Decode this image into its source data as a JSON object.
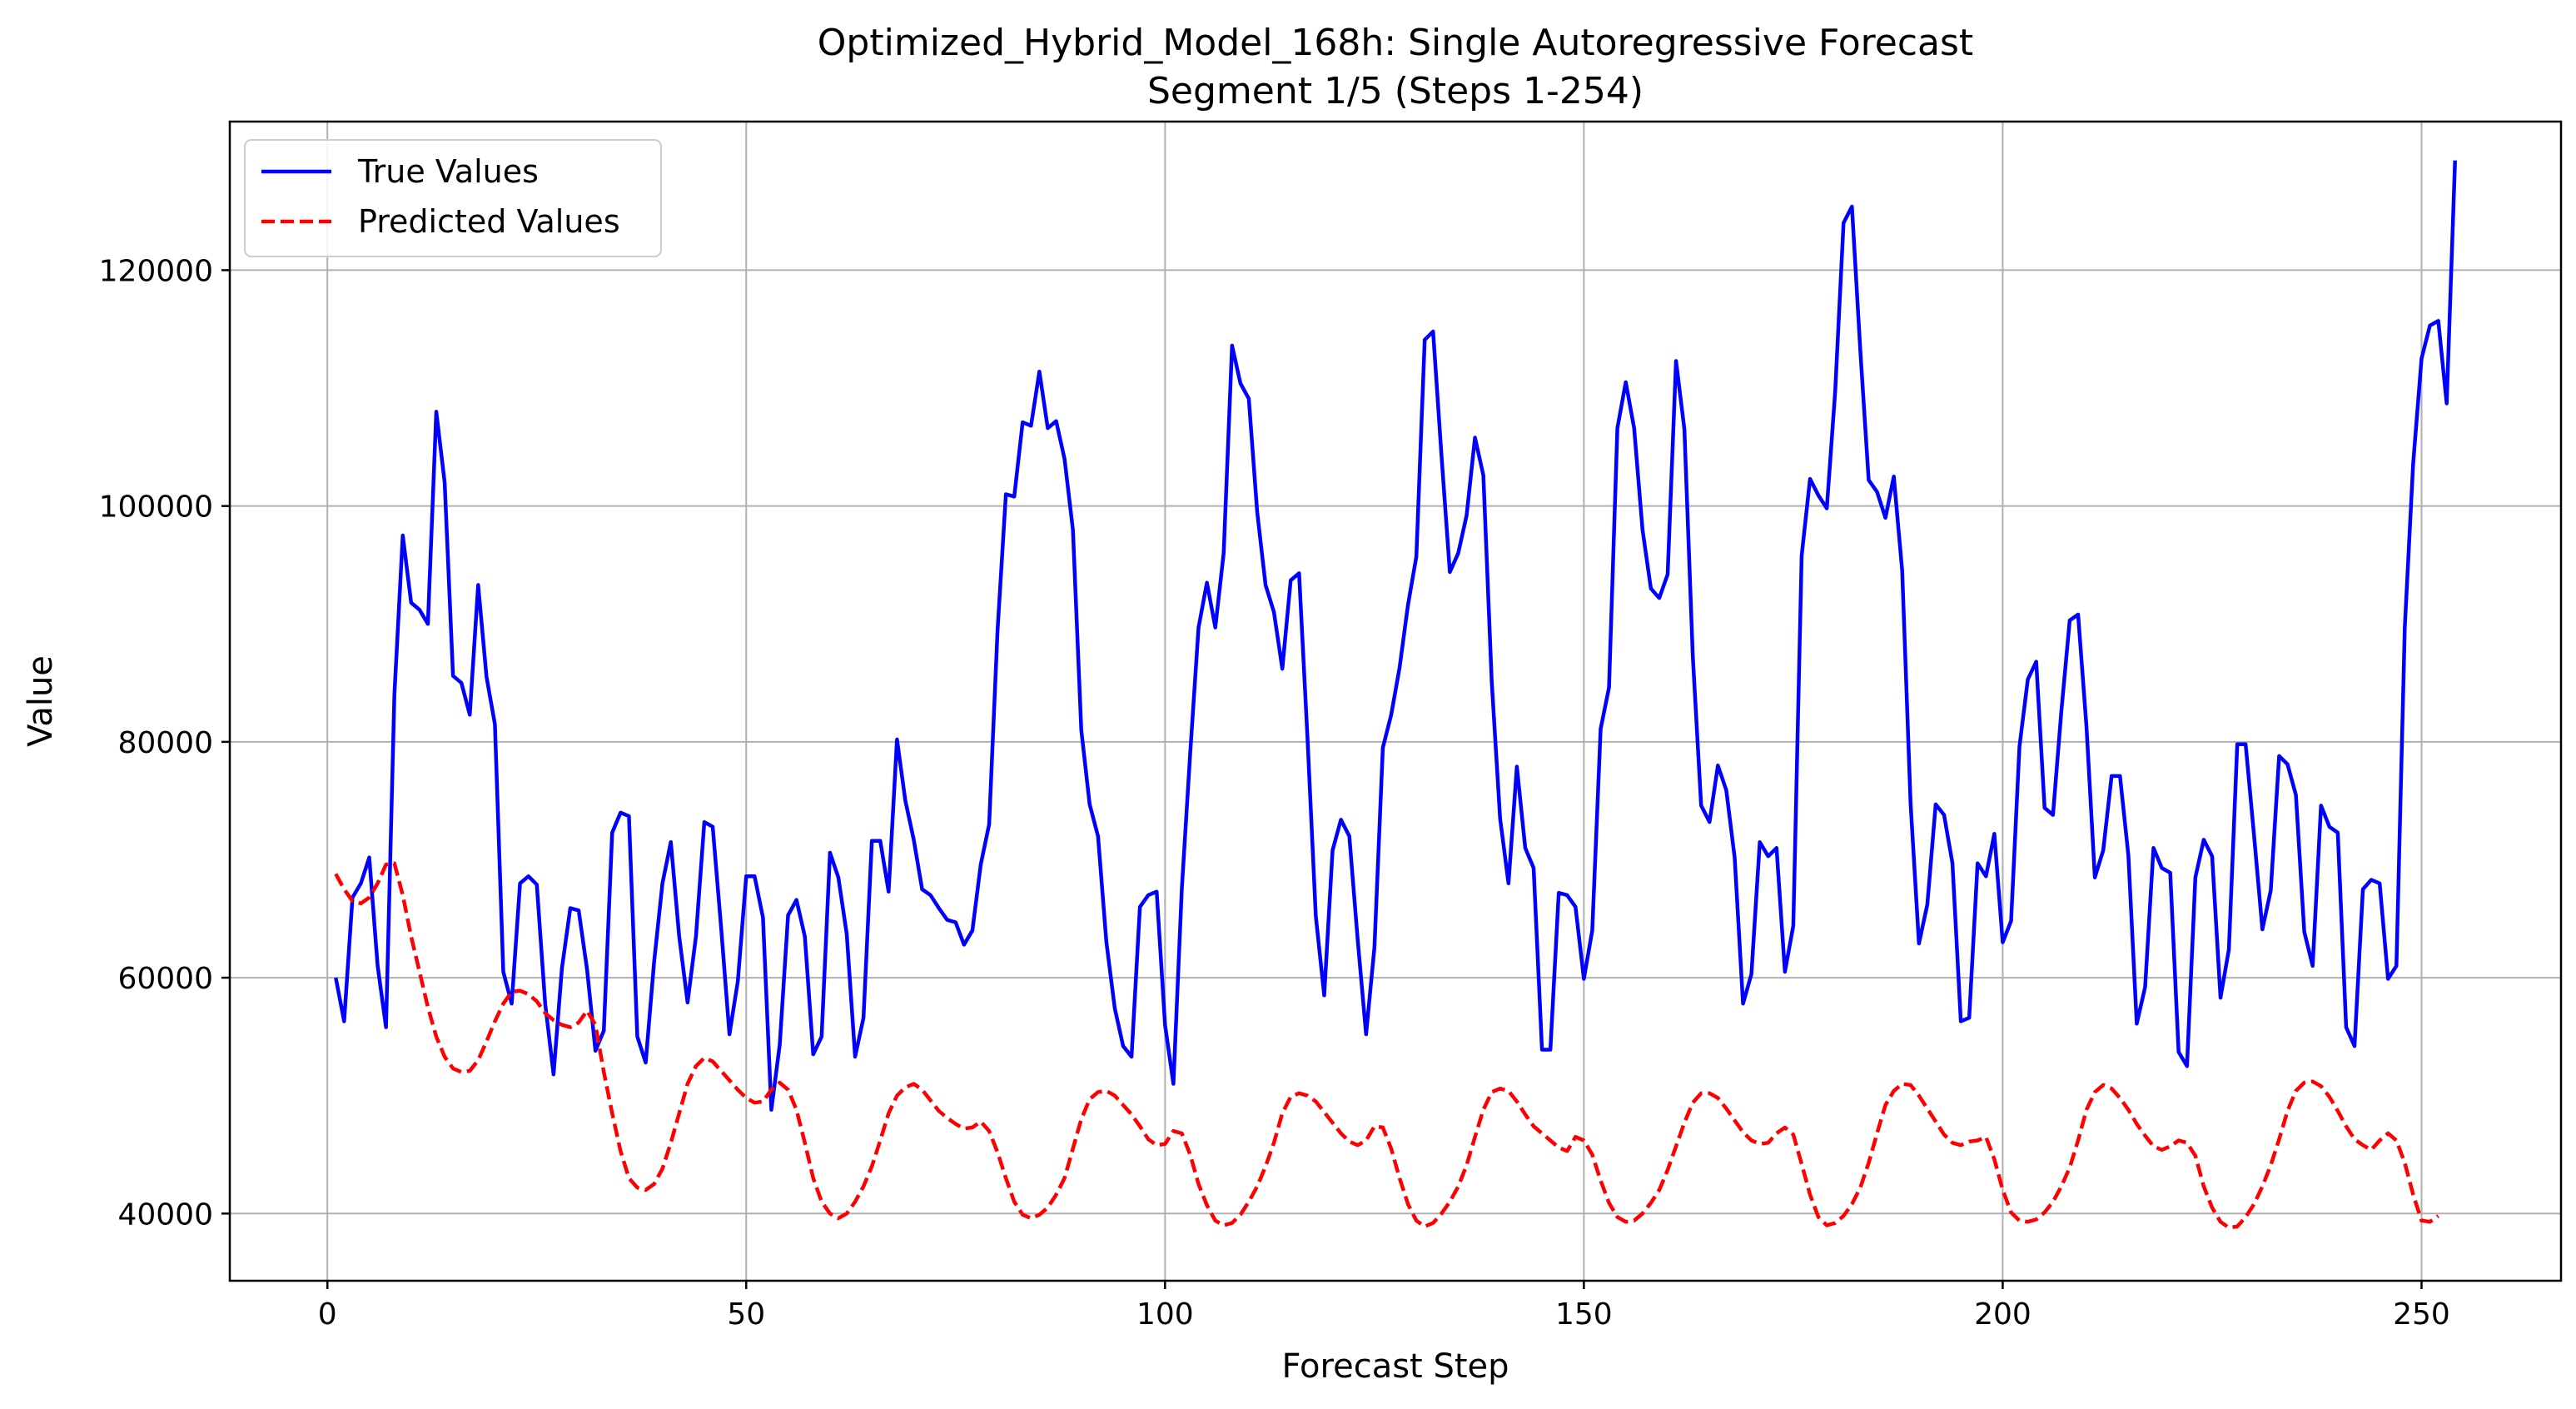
{
  "chart_data": {
    "type": "line",
    "title": "Optimized_Hybrid_Model_168h: Single Autoregressive Forecast",
    "subtitle": "Segment 1/5 (Steps 1-254)",
    "xlabel": "Forecast Step",
    "ylabel": "Value",
    "xlim": [
      -11.65,
      266.65
    ],
    "ylim": [
      34300,
      132600
    ],
    "xticks": [
      0,
      50,
      100,
      150,
      200,
      250
    ],
    "yticks": [
      40000,
      60000,
      80000,
      100000,
      120000
    ],
    "grid": true,
    "legend_position": "top-left",
    "x_start": 1,
    "series": [
      {
        "name": "True Values",
        "color": "#0000ff",
        "style": "solid",
        "values": [
          60000,
          56300,
          66800,
          68000,
          70200,
          61000,
          55800,
          84000,
          97500,
          91800,
          91200,
          90000,
          108000,
          102000,
          85600,
          85000,
          82300,
          93300,
          85500,
          81500,
          60500,
          57800,
          68000,
          68600,
          67900,
          57800,
          51800,
          60800,
          65900,
          65700,
          60700,
          53800,
          55500,
          72300,
          74000,
          73700,
          55000,
          52800,
          61300,
          68000,
          71500,
          63500,
          57900,
          63500,
          73200,
          72800,
          64300,
          55200,
          59700,
          68600,
          68600,
          65100,
          48800,
          54300,
          65300,
          66600,
          63500,
          53500,
          55000,
          70600,
          68500,
          63700,
          53300,
          56600,
          71600,
          71600,
          67300,
          80200,
          75000,
          71700,
          67500,
          67000,
          65900,
          64900,
          64700,
          62800,
          64000,
          69600,
          73000,
          89400,
          101000,
          100800,
          107100,
          106800,
          111400,
          106600,
          107200,
          104000,
          98000,
          81000,
          74700,
          72000,
          63000,
          57400,
          54200,
          53300,
          66000,
          67000,
          67300,
          56000,
          51000,
          67500,
          79000,
          89700,
          93500,
          89700,
          96000,
          113600,
          110400,
          109100,
          99500,
          93300,
          91000,
          86200,
          93700,
          94300,
          80400,
          65200,
          58500,
          70800,
          73400,
          72000,
          63200,
          55200,
          62600,
          79500,
          82300,
          86300,
          91600,
          95700,
          114100,
          114800,
          104300,
          94400,
          96000,
          99200,
          105800,
          102600,
          85100,
          73500,
          68000,
          77900,
          71000,
          69300,
          53900,
          53900,
          67200,
          67000,
          66000,
          59900,
          64000,
          81100,
          84600,
          106600,
          110500,
          106600,
          98000,
          93000,
          92200,
          94200,
          112300,
          106500,
          87300,
          74600,
          73200,
          78000,
          75900,
          70200,
          57800,
          60300,
          71500,
          70300,
          71000,
          60500,
          64400,
          95800,
          102300,
          100900,
          99800,
          109700,
          124000,
          125400,
          113200,
          102200,
          101200,
          99000,
          102500,
          94500,
          74800,
          62900,
          66200,
          74700,
          73800,
          69700,
          56300,
          56600,
          69700,
          68600,
          72200,
          63000,
          64800,
          79600,
          85300,
          86800,
          74400,
          73800,
          82600,
          90300,
          90800,
          81300,
          68500,
          70800,
          77100,
          77100,
          70400,
          56100,
          59200,
          71000,
          69300,
          68900,
          53700,
          52500,
          68500,
          71700,
          70300,
          58300,
          62400,
          79800,
          79800,
          72100,
          64100,
          67400,
          78800,
          78100,
          75500,
          63900,
          61000,
          74600,
          72800,
          72300,
          55800,
          54200,
          67500,
          68300,
          68000,
          59900,
          61000,
          89700,
          103600,
          112500,
          115300,
          115700,
          108700,
          129300
        ]
      },
      {
        "name": "Predicted Values",
        "color": "#ff0000",
        "style": "dashed",
        "values": [
          68800,
          67500,
          66500,
          66300,
          66800,
          68000,
          69600,
          69700,
          67000,
          63500,
          60500,
          57500,
          55000,
          53300,
          52300,
          52000,
          52100,
          53000,
          54600,
          56300,
          57800,
          58800,
          58900,
          58600,
          58000,
          57000,
          56400,
          56000,
          55800,
          56200,
          57200,
          56000,
          52000,
          48500,
          45300,
          43000,
          42200,
          42000,
          42500,
          43800,
          46000,
          48500,
          51000,
          52500,
          53200,
          52900,
          52100,
          51300,
          50500,
          49800,
          49400,
          49500,
          50500,
          51100,
          50500,
          48800,
          46000,
          43000,
          41000,
          40000,
          39600,
          40000,
          41000,
          42300,
          44000,
          46200,
          48500,
          50000,
          50700,
          51000,
          50500,
          49600,
          48700,
          48100,
          47600,
          47200,
          47300,
          47800,
          47000,
          45200,
          43000,
          41000,
          39900,
          39600,
          39900,
          40500,
          41600,
          43000,
          45500,
          48000,
          49700,
          50300,
          50400,
          50000,
          49200,
          48400,
          47400,
          46300,
          45800,
          45900,
          47000,
          46800,
          45000,
          42500,
          40700,
          39400,
          39000,
          39200,
          39900,
          41000,
          42300,
          44000,
          46000,
          48500,
          49900,
          50200,
          50000,
          49500,
          48600,
          47700,
          46800,
          46100,
          45800,
          46200,
          47400,
          47300,
          45500,
          43000,
          40800,
          39400,
          38900,
          39200,
          40000,
          41000,
          42300,
          44100,
          46500,
          48800,
          50300,
          50600,
          50400,
          49500,
          48400,
          47400,
          46800,
          46200,
          45600,
          45300,
          46500,
          46200,
          45000,
          42800,
          40900,
          39700,
          39300,
          39400,
          40000,
          40900,
          42000,
          43700,
          45700,
          47700,
          49400,
          50200,
          50200,
          49800,
          48900,
          47900,
          46900,
          46200,
          45900,
          46000,
          46800,
          47300,
          46700,
          44200,
          41600,
          39700,
          39000,
          39200,
          39800,
          40800,
          42200,
          44300,
          46800,
          49200,
          50400,
          51000,
          50900,
          50000,
          48900,
          47800,
          46700,
          46000,
          45800,
          46100,
          46200,
          46500,
          44600,
          42000,
          40100,
          39400,
          39300,
          39500,
          40100,
          41000,
          42300,
          43900,
          46200,
          48800,
          50300,
          50900,
          50600,
          49800,
          48800,
          47600,
          46600,
          45700,
          45400,
          45700,
          46200,
          46000,
          44900,
          42300,
          40500,
          39300,
          38800,
          38900,
          39700,
          40800,
          42300,
          44100,
          46300,
          48700,
          50400,
          51100,
          51200,
          50800,
          49900,
          48700,
          47400,
          46300,
          45800,
          45400,
          46200,
          46800,
          46200,
          44300,
          41600,
          39400,
          39300,
          39800
        ]
      }
    ]
  }
}
